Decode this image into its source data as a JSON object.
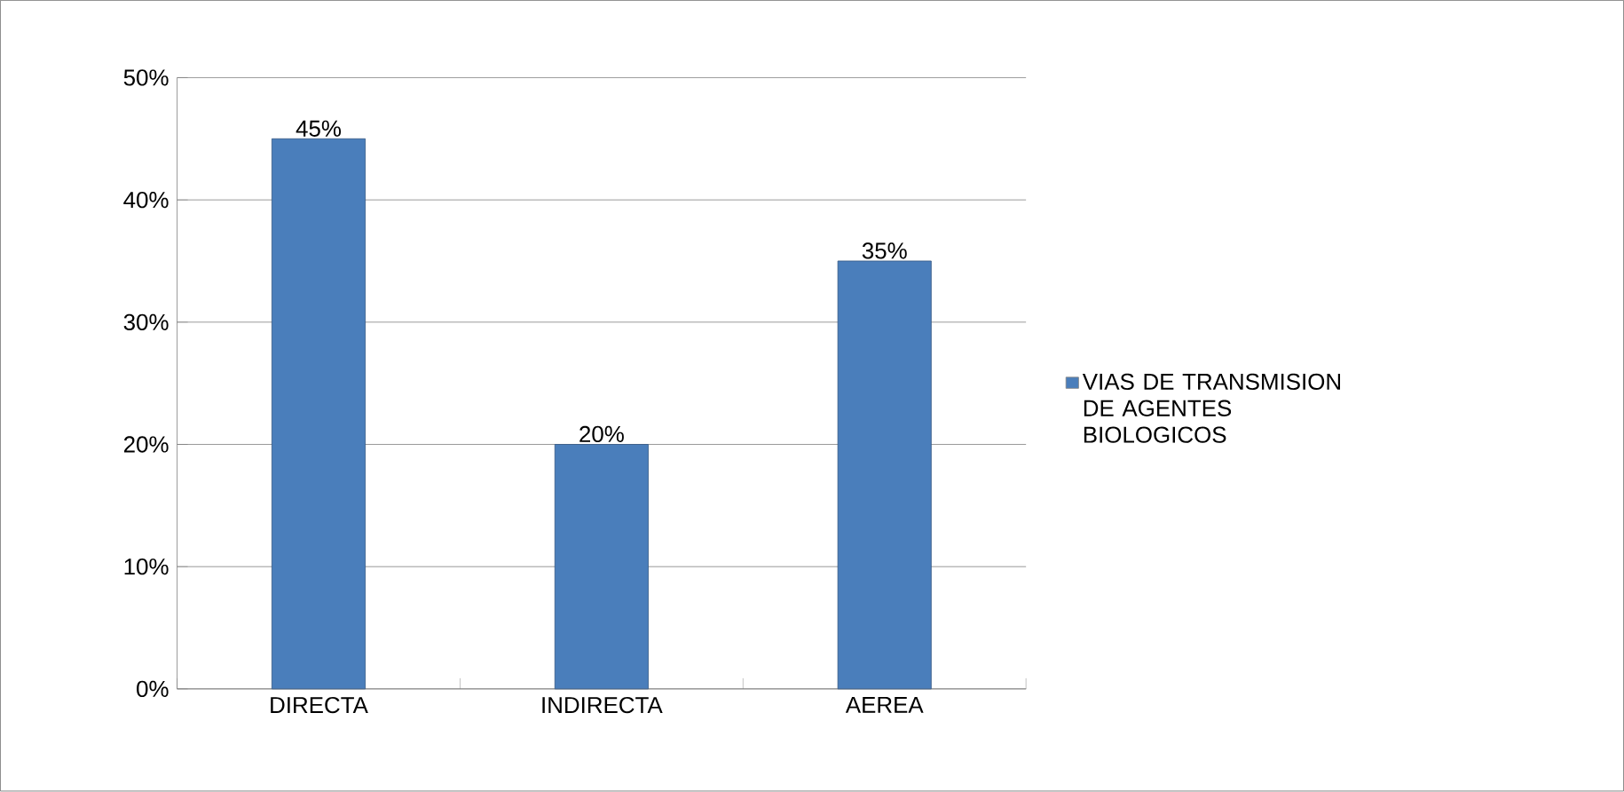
{
  "chart_data": {
    "type": "bar",
    "categories": [
      "DIRECTA",
      "INDIRECTA",
      "AEREA"
    ],
    "series": [
      {
        "name": "VIAS DE TRANSMISION DE AGENTES BIOLOGICOS",
        "color": "#4a7ebb",
        "values": [
          45,
          20,
          35
        ],
        "value_labels": [
          "45%",
          "20%",
          "35%"
        ]
      }
    ],
    "ylim": [
      0,
      50
    ],
    "yticks": [
      {
        "value": 0,
        "label": "0%"
      },
      {
        "value": 10,
        "label": "10%"
      },
      {
        "value": 20,
        "label": "20%"
      },
      {
        "value": 30,
        "label": "30%"
      },
      {
        "value": 40,
        "label": "40%"
      },
      {
        "value": 50,
        "label": "50%"
      }
    ],
    "grid": "y",
    "legend": "right"
  }
}
